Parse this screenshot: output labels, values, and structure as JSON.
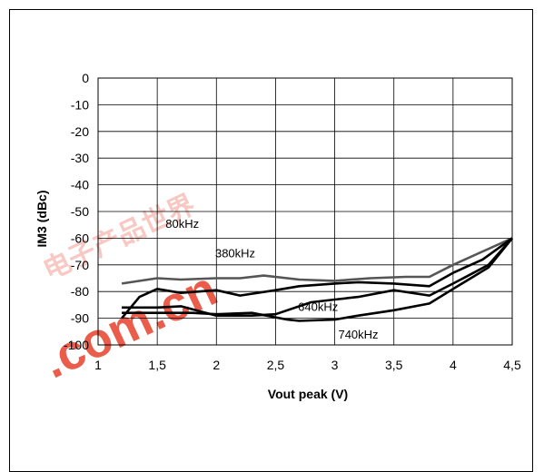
{
  "watermark": {
    "text": ".com.cn",
    "cjk": "电子产品世界",
    "color": "#e8412c"
  },
  "chart_data": {
    "type": "line",
    "xlabel": "Vout peak (V)",
    "ylabel": "IM3 (dBc)",
    "xlim": [
      1,
      4.5
    ],
    "ylim": [
      -100,
      0
    ],
    "xticks": [
      "1",
      "1,5",
      "2",
      "2,5",
      "3",
      "3,5",
      "4",
      "4,5"
    ],
    "yticks": [
      "0",
      "-10",
      "-20",
      "-30",
      "-40",
      "-50",
      "-60",
      "-70",
      "-80",
      "-90",
      "-100"
    ],
    "grid": true,
    "series": [
      {
        "name": "80kHz",
        "color": "#555555",
        "x": [
          1.2,
          1.5,
          1.7,
          2.0,
          2.2,
          2.4,
          2.7,
          3.0,
          3.3,
          3.6,
          3.8,
          4.0,
          4.2,
          4.5
        ],
        "y": [
          -77,
          -75,
          -75.5,
          -75,
          -75,
          -74,
          -75.5,
          -76,
          -75,
          -74.5,
          -74.5,
          -70,
          -66,
          -60
        ]
      },
      {
        "name": "380kHz",
        "color": "#000000",
        "x": [
          1.2,
          1.35,
          1.5,
          1.7,
          2.0,
          2.2,
          2.5,
          2.7,
          3.0,
          3.2,
          3.5,
          3.8,
          4.0,
          4.25,
          4.5
        ],
        "y": [
          -90,
          -82,
          -79,
          -80.5,
          -79.5,
          -81.5,
          -79.5,
          -78,
          -77,
          -76.5,
          -77,
          -78,
          -73,
          -68,
          -60
        ]
      },
      {
        "name": "640kHz",
        "color": "#000000",
        "x": [
          1.2,
          1.5,
          1.7,
          2.0,
          2.3,
          2.5,
          2.8,
          3.0,
          3.2,
          3.5,
          3.8,
          4.0,
          4.3,
          4.5
        ],
        "y": [
          -86,
          -86,
          -85.5,
          -89,
          -89,
          -88.5,
          -84,
          -83,
          -82,
          -79.5,
          -81.5,
          -77,
          -70,
          -60
        ]
      },
      {
        "name": "740kHz",
        "color": "#000000",
        "x": [
          1.2,
          1.5,
          1.8,
          2.0,
          2.3,
          2.6,
          2.7,
          3.0,
          3.2,
          3.5,
          3.8,
          4.0,
          4.3,
          4.5
        ],
        "y": [
          -88,
          -88,
          -88,
          -88.5,
          -88,
          -90.5,
          -91,
          -90.5,
          -89,
          -87,
          -84.5,
          -79,
          -71,
          -60
        ]
      }
    ]
  }
}
